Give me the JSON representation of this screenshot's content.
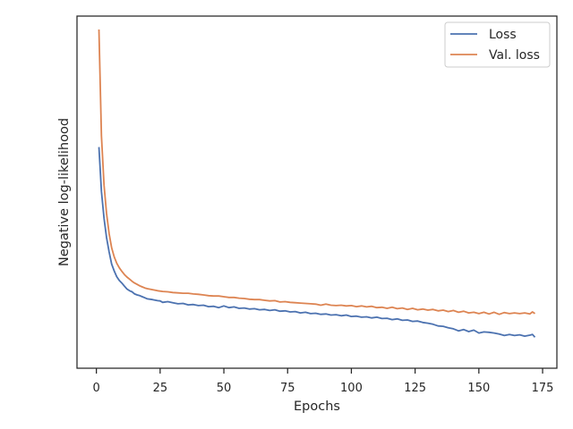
{
  "chart_data": {
    "type": "line",
    "title": "",
    "xlabel": "Epochs",
    "ylabel": "Negative log-likelihood",
    "xlim": [
      -7.6,
      180.6
    ],
    "ylim": [
      0,
      100
    ],
    "x_ticks": [
      0,
      25,
      50,
      75,
      100,
      125,
      150,
      175
    ],
    "x_tick_labels": [
      "0",
      "25",
      "50",
      "75",
      "100",
      "125",
      "150",
      "175"
    ],
    "y_ticks_shown": false,
    "grid": false,
    "legend": {
      "placement": "upper-right"
    },
    "colors": {
      "loss": "#4c72b0",
      "val_loss": "#dd8452",
      "frame": "#262626"
    },
    "series": [
      {
        "name": "Loss",
        "color": "#4c72b0",
        "points": [
          [
            1,
            62.8
          ],
          [
            2,
            50.2
          ],
          [
            3,
            42.6
          ],
          [
            4,
            37.1
          ],
          [
            5,
            33.0
          ],
          [
            6,
            29.6
          ],
          [
            7,
            27.6
          ],
          [
            8,
            26.0
          ],
          [
            9,
            24.9
          ],
          [
            10,
            24.2
          ],
          [
            11,
            23.3
          ],
          [
            12,
            22.5
          ],
          [
            13,
            22.0
          ],
          [
            14,
            21.7
          ],
          [
            15,
            21.1
          ],
          [
            16,
            20.8
          ],
          [
            17,
            20.6
          ],
          [
            18,
            20.3
          ],
          [
            19,
            20.0
          ],
          [
            20,
            19.7
          ],
          [
            22,
            19.5
          ],
          [
            24,
            19.2
          ],
          [
            25,
            19.1
          ],
          [
            26,
            18.7
          ],
          [
            28,
            18.9
          ],
          [
            30,
            18.6
          ],
          [
            32,
            18.3
          ],
          [
            34,
            18.4
          ],
          [
            36,
            18.0
          ],
          [
            38,
            18.1
          ],
          [
            40,
            17.8
          ],
          [
            42,
            17.9
          ],
          [
            44,
            17.5
          ],
          [
            46,
            17.6
          ],
          [
            48,
            17.2
          ],
          [
            50,
            17.7
          ],
          [
            52,
            17.2
          ],
          [
            54,
            17.4
          ],
          [
            56,
            17.0
          ],
          [
            58,
            17.1
          ],
          [
            60,
            16.8
          ],
          [
            62,
            16.9
          ],
          [
            64,
            16.6
          ],
          [
            66,
            16.7
          ],
          [
            68,
            16.4
          ],
          [
            70,
            16.6
          ],
          [
            72,
            16.2
          ],
          [
            74,
            16.3
          ],
          [
            76,
            16.0
          ],
          [
            78,
            16.1
          ],
          [
            80,
            15.7
          ],
          [
            82,
            15.9
          ],
          [
            84,
            15.5
          ],
          [
            86,
            15.6
          ],
          [
            88,
            15.3
          ],
          [
            90,
            15.4
          ],
          [
            92,
            15.1
          ],
          [
            94,
            15.2
          ],
          [
            96,
            14.9
          ],
          [
            98,
            15.1
          ],
          [
            100,
            14.7
          ],
          [
            102,
            14.8
          ],
          [
            104,
            14.5
          ],
          [
            106,
            14.6
          ],
          [
            108,
            14.3
          ],
          [
            110,
            14.5
          ],
          [
            112,
            14.1
          ],
          [
            114,
            14.2
          ],
          [
            116,
            13.8
          ],
          [
            118,
            14.0
          ],
          [
            120,
            13.6
          ],
          [
            122,
            13.7
          ],
          [
            124,
            13.3
          ],
          [
            126,
            13.4
          ],
          [
            128,
            13.0
          ],
          [
            130,
            12.8
          ],
          [
            132,
            12.5
          ],
          [
            134,
            12.0
          ],
          [
            136,
            11.9
          ],
          [
            138,
            11.5
          ],
          [
            140,
            11.2
          ],
          [
            142,
            10.6
          ],
          [
            144,
            11.0
          ],
          [
            146,
            10.4
          ],
          [
            148,
            10.8
          ],
          [
            150,
            10.0
          ],
          [
            152,
            10.3
          ],
          [
            154,
            10.2
          ],
          [
            156,
            10.0
          ],
          [
            158,
            9.7
          ],
          [
            160,
            9.3
          ],
          [
            162,
            9.6
          ],
          [
            164,
            9.3
          ],
          [
            166,
            9.5
          ],
          [
            168,
            9.1
          ],
          [
            170,
            9.4
          ],
          [
            171,
            9.6
          ],
          [
            172,
            8.8
          ]
        ]
      },
      {
        "name": "Val. loss",
        "color": "#dd8452",
        "points": [
          [
            1,
            96.2
          ],
          [
            2,
            66.0
          ],
          [
            3,
            52.0
          ],
          [
            4,
            44.0
          ],
          [
            5,
            38.2
          ],
          [
            6,
            34.2
          ],
          [
            7,
            31.6
          ],
          [
            8,
            29.8
          ],
          [
            9,
            28.5
          ],
          [
            10,
            27.5
          ],
          [
            11,
            26.6
          ],
          [
            12,
            25.9
          ],
          [
            13,
            25.3
          ],
          [
            14,
            24.7
          ],
          [
            15,
            24.2
          ],
          [
            16,
            23.8
          ],
          [
            17,
            23.4
          ],
          [
            18,
            23.1
          ],
          [
            19,
            22.8
          ],
          [
            20,
            22.6
          ],
          [
            22,
            22.3
          ],
          [
            24,
            22.0
          ],
          [
            26,
            21.8
          ],
          [
            28,
            21.7
          ],
          [
            30,
            21.5
          ],
          [
            32,
            21.4
          ],
          [
            34,
            21.3
          ],
          [
            36,
            21.3
          ],
          [
            38,
            21.1
          ],
          [
            40,
            21.0
          ],
          [
            42,
            20.8
          ],
          [
            44,
            20.6
          ],
          [
            46,
            20.5
          ],
          [
            48,
            20.5
          ],
          [
            50,
            20.3
          ],
          [
            52,
            20.1
          ],
          [
            54,
            20.1
          ],
          [
            56,
            19.9
          ],
          [
            58,
            19.8
          ],
          [
            60,
            19.6
          ],
          [
            62,
            19.5
          ],
          [
            64,
            19.5
          ],
          [
            66,
            19.3
          ],
          [
            68,
            19.1
          ],
          [
            70,
            19.2
          ],
          [
            72,
            18.8
          ],
          [
            74,
            18.9
          ],
          [
            76,
            18.7
          ],
          [
            78,
            18.6
          ],
          [
            80,
            18.5
          ],
          [
            82,
            18.4
          ],
          [
            84,
            18.3
          ],
          [
            86,
            18.2
          ],
          [
            88,
            17.9
          ],
          [
            90,
            18.2
          ],
          [
            92,
            17.9
          ],
          [
            94,
            17.8
          ],
          [
            96,
            17.9
          ],
          [
            98,
            17.7
          ],
          [
            100,
            17.8
          ],
          [
            102,
            17.5
          ],
          [
            104,
            17.7
          ],
          [
            106,
            17.4
          ],
          [
            108,
            17.6
          ],
          [
            110,
            17.2
          ],
          [
            112,
            17.3
          ],
          [
            114,
            17.0
          ],
          [
            116,
            17.3
          ],
          [
            118,
            16.9
          ],
          [
            120,
            17.1
          ],
          [
            122,
            16.7
          ],
          [
            124,
            17.0
          ],
          [
            126,
            16.6
          ],
          [
            128,
            16.8
          ],
          [
            130,
            16.5
          ],
          [
            132,
            16.7
          ],
          [
            134,
            16.3
          ],
          [
            136,
            16.5
          ],
          [
            138,
            16.1
          ],
          [
            140,
            16.4
          ],
          [
            142,
            15.9
          ],
          [
            144,
            16.2
          ],
          [
            146,
            15.7
          ],
          [
            148,
            15.9
          ],
          [
            150,
            15.5
          ],
          [
            152,
            15.9
          ],
          [
            154,
            15.4
          ],
          [
            156,
            15.9
          ],
          [
            158,
            15.3
          ],
          [
            160,
            15.8
          ],
          [
            162,
            15.5
          ],
          [
            164,
            15.7
          ],
          [
            166,
            15.5
          ],
          [
            168,
            15.7
          ],
          [
            170,
            15.4
          ],
          [
            171,
            16.0
          ],
          [
            172,
            15.5
          ]
        ]
      }
    ]
  }
}
